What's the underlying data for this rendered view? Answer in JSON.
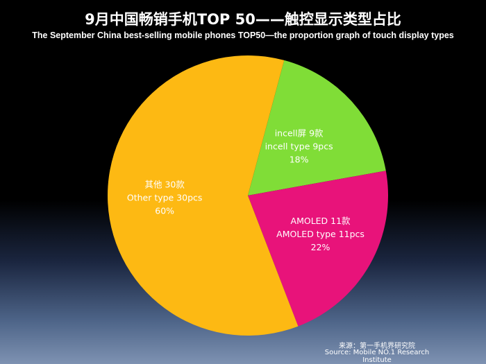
{
  "chart_data": {
    "type": "pie",
    "title": "9月中国畅销手机TOP 50——触控显示类型占比",
    "subtitle": "The September China best-selling mobile phones TOP50—the proportion graph of touch display types",
    "slices": [
      {
        "label_cn": "incell屏 9款",
        "label_en": "incell type 9pcs",
        "value": 9,
        "percent": "18%",
        "color": "#80dd37"
      },
      {
        "label_cn": "AMOLED 11款",
        "label_en": "AMOLED type 11pcs",
        "value": 11,
        "percent": "22%",
        "color": "#e8137a"
      },
      {
        "label_cn": "其他 30款",
        "label_en": "Other type 30pcs",
        "value": 30,
        "percent": "60%",
        "color": "#fdb913"
      }
    ]
  },
  "source": {
    "cn": "来源：第一手机界研究院",
    "en": "Source: Mobile NO.1 Research Institute"
  }
}
